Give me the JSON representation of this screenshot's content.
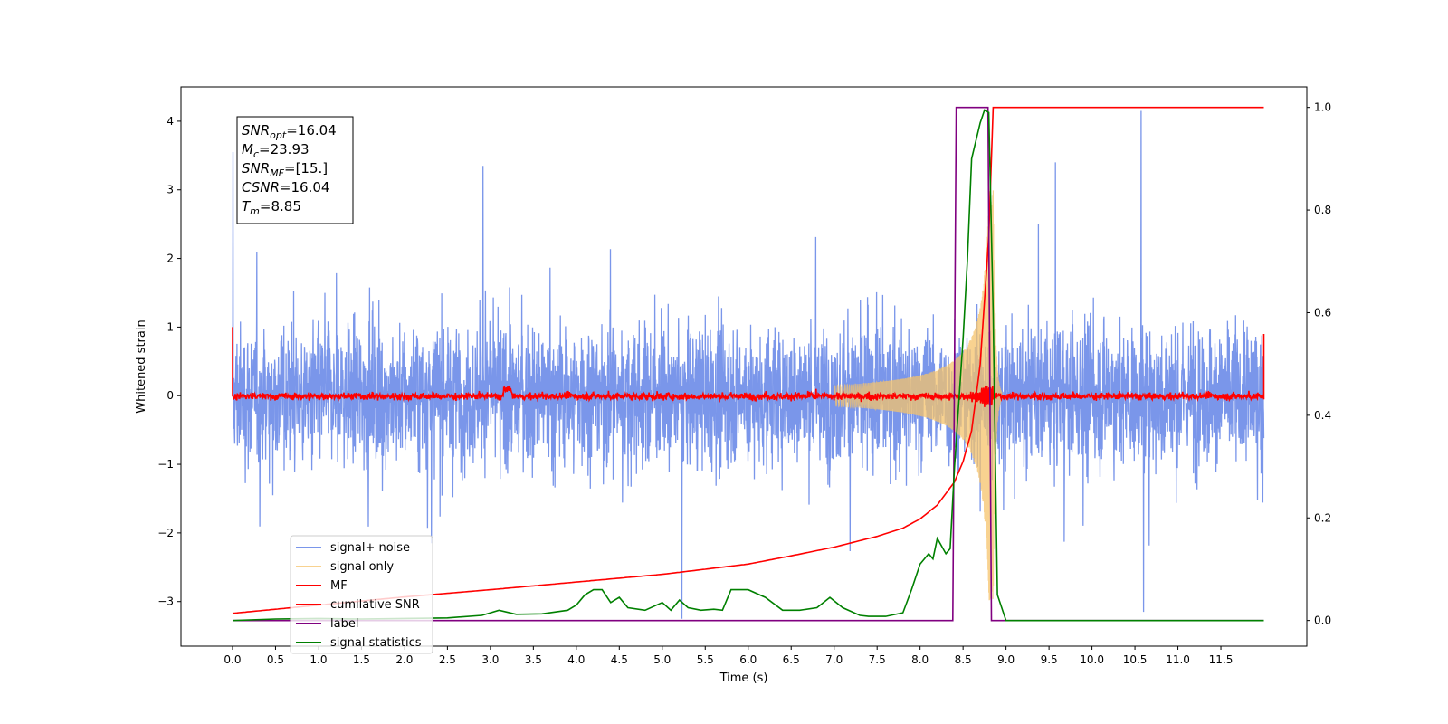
{
  "chart_data": {
    "type": "line",
    "title": "",
    "xlabel": "Time (s)",
    "ylabel": "Whitened strain",
    "y2label": "",
    "xlim": [
      -0.6,
      12.5
    ],
    "ylim": [
      -3.65,
      4.5
    ],
    "y2lim": [
      -0.05,
      1.04
    ],
    "xticks": [
      0.0,
      0.5,
      1.0,
      1.5,
      2.0,
      2.5,
      3.0,
      3.5,
      4.0,
      4.5,
      5.0,
      5.5,
      6.0,
      6.5,
      7.0,
      7.5,
      8.0,
      8.5,
      9.0,
      9.5,
      10.0,
      10.5,
      11.0,
      11.5
    ],
    "xtick_labels": [
      "0.0",
      "0.5",
      "1.0",
      "1.5",
      "2.0",
      "2.5",
      "3.0",
      "3.5",
      "4.0",
      "4.5",
      "5.0",
      "5.5",
      "6.0",
      "6.5",
      "7.0",
      "7.5",
      "8.0",
      "8.5",
      "9.0",
      "9.5",
      "10.0",
      "10.5",
      "11.0",
      "11.5"
    ],
    "yticks": [
      -3,
      -2,
      -1,
      0,
      1,
      2,
      3,
      4
    ],
    "ytick_labels": [
      "−3",
      "−2",
      "−1",
      "0",
      "1",
      "2",
      "3",
      "4"
    ],
    "y2ticks": [
      0.0,
      0.2,
      0.4,
      0.6,
      0.8,
      1.0
    ],
    "y2tick_labels": [
      "0.0",
      "0.2",
      "0.4",
      "0.6",
      "0.8",
      "1.0"
    ],
    "grid": false,
    "legend_position": "lower-left",
    "annotation": {
      "lines": [
        {
          "base": "SNR",
          "sub": "opt",
          "value": "=16.04"
        },
        {
          "base": "M",
          "sub": "c",
          "value": "=23.93"
        },
        {
          "base": "SNR",
          "sub": "MF",
          "value": "=[15.]"
        },
        {
          "base": "CSNR",
          "sub": "",
          "value": "=16.04"
        },
        {
          "base": "T",
          "sub": "m",
          "value": "=8.85"
        }
      ]
    },
    "series": [
      {
        "name": "signal+ noise",
        "color": "#4169e1",
        "axis": "left",
        "kind": "noise",
        "t_range": [
          0.0,
          12.0
        ],
        "spread": 1.0,
        "peak": 4.2
      },
      {
        "name": "signal only",
        "color": "#f5c36b",
        "axis": "left",
        "kind": "chirp",
        "t_merge": 8.85,
        "peak_amplitude": 3.0
      },
      {
        "name": "MF",
        "color": "#ff0000",
        "axis": "left",
        "kind": "mf-trace",
        "t_range": [
          0.0,
          12.0
        ],
        "spread": 0.08
      },
      {
        "name": "cumilative SNR",
        "color": "#ff0000",
        "axis": "right",
        "x": [
          0.0,
          1.0,
          2.0,
          3.0,
          4.0,
          5.0,
          6.0,
          6.5,
          7.0,
          7.5,
          7.8,
          8.0,
          8.2,
          8.4,
          8.5,
          8.6,
          8.7,
          8.8,
          8.85,
          8.88,
          12.0
        ],
        "y": [
          0.014,
          0.03,
          0.046,
          0.06,
          0.075,
          0.09,
          0.11,
          0.126,
          0.143,
          0.164,
          0.18,
          0.198,
          0.225,
          0.27,
          0.31,
          0.37,
          0.5,
          0.75,
          1.0,
          1.0,
          1.0
        ]
      },
      {
        "name": "label",
        "color": "#800080",
        "axis": "right",
        "x": [
          0.0,
          8.38,
          8.42,
          8.79,
          8.83,
          12.0
        ],
        "y": [
          0.0,
          0.0,
          1.0,
          1.0,
          0.0,
          0.0
        ]
      },
      {
        "name": "signal statistics",
        "color": "#008000",
        "axis": "right",
        "x": [
          0.0,
          0.5,
          1.0,
          1.5,
          2.0,
          2.5,
          2.9,
          3.1,
          3.3,
          3.6,
          3.9,
          4.0,
          4.1,
          4.2,
          4.3,
          4.4,
          4.5,
          4.6,
          4.8,
          5.0,
          5.1,
          5.2,
          5.3,
          5.45,
          5.6,
          5.7,
          5.8,
          6.0,
          6.2,
          6.4,
          6.6,
          6.8,
          6.95,
          7.1,
          7.3,
          7.4,
          7.6,
          7.8,
          7.9,
          8.0,
          8.1,
          8.15,
          8.2,
          8.3,
          8.35,
          8.4,
          8.5,
          8.55,
          8.6,
          8.7,
          8.75,
          8.8,
          8.85,
          8.9,
          9.0,
          12.0
        ],
        "y": [
          0.0,
          0.003,
          0.004,
          0.003,
          0.004,
          0.005,
          0.01,
          0.02,
          0.012,
          0.013,
          0.02,
          0.03,
          0.05,
          0.06,
          0.06,
          0.035,
          0.045,
          0.025,
          0.02,
          0.035,
          0.02,
          0.04,
          0.025,
          0.02,
          0.022,
          0.02,
          0.06,
          0.06,
          0.045,
          0.02,
          0.02,
          0.025,
          0.045,
          0.025,
          0.01,
          0.008,
          0.008,
          0.015,
          0.06,
          0.11,
          0.13,
          0.12,
          0.16,
          0.13,
          0.14,
          0.3,
          0.55,
          0.7,
          0.9,
          0.97,
          0.995,
          0.99,
          0.6,
          0.05,
          0.0,
          0.0
        ]
      }
    ]
  }
}
